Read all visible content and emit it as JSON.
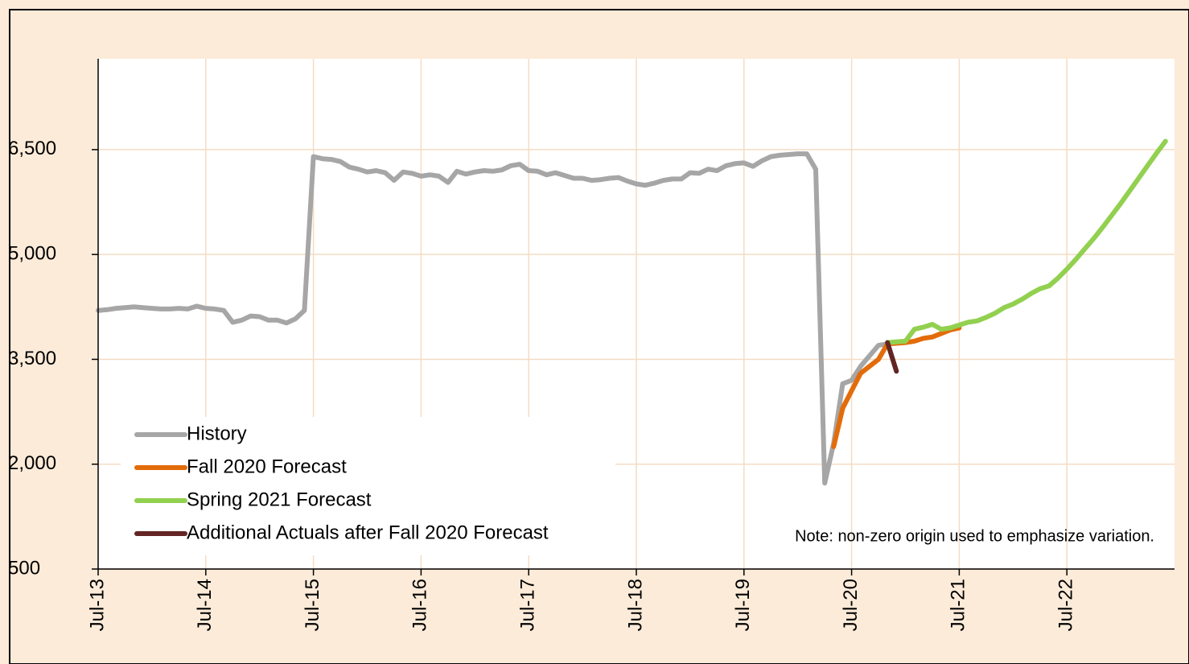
{
  "chart_data": {
    "type": "line",
    "categories": [
      "Jul-13",
      null,
      null,
      null,
      null,
      null,
      null,
      null,
      null,
      null,
      null,
      null,
      "Jul-14",
      null,
      null,
      null,
      null,
      null,
      null,
      null,
      null,
      null,
      null,
      null,
      "Jul-15",
      null,
      null,
      null,
      null,
      null,
      null,
      null,
      null,
      null,
      null,
      null,
      "Jul-16",
      null,
      null,
      null,
      null,
      null,
      null,
      null,
      null,
      null,
      null,
      null,
      "Jul-17",
      null,
      null,
      null,
      null,
      null,
      null,
      null,
      null,
      null,
      null,
      null,
      "Jul-18",
      null,
      null,
      null,
      null,
      null,
      null,
      null,
      null,
      null,
      null,
      null,
      "Jul-19",
      null,
      null,
      null,
      null,
      null,
      null,
      null,
      null,
      null,
      null,
      null,
      "Jul-20",
      null,
      null,
      null,
      null,
      null,
      null,
      null,
      null,
      null,
      null,
      null,
      "Jul-21",
      null,
      null,
      null,
      null,
      null,
      null,
      null,
      null,
      null,
      null,
      null,
      "Jul-22",
      null,
      null,
      null,
      null,
      null,
      null,
      null,
      null,
      null,
      null,
      null
    ],
    "series": [
      {
        "name": "History",
        "color": "#a6a6a6",
        "values": [
          4200,
          4210,
          4230,
          4240,
          4250,
          4240,
          4230,
          4220,
          4220,
          4230,
          4220,
          4260,
          4230,
          4220,
          4200,
          4030,
          4060,
          4120,
          4110,
          4060,
          4060,
          4020,
          4080,
          4200,
          6400,
          6370,
          6360,
          6330,
          6250,
          6220,
          6180,
          6200,
          6170,
          6060,
          6180,
          6160,
          6120,
          6140,
          6120,
          6030,
          6190,
          6150,
          6180,
          6200,
          6190,
          6210,
          6270,
          6290,
          6200,
          6190,
          6140,
          6170,
          6130,
          6090,
          6090,
          6060,
          6070,
          6090,
          6100,
          6050,
          6010,
          5990,
          6020,
          6060,
          6080,
          6080,
          6170,
          6160,
          6220,
          6200,
          6270,
          6300,
          6310,
          6260,
          6340,
          6400,
          6420,
          6430,
          6440,
          6440,
          6220,
          1730,
          2300,
          3150,
          3200,
          3400,
          3550,
          3700,
          3720,
          null,
          null,
          null,
          null,
          null,
          null,
          null,
          null,
          null,
          null,
          null,
          null,
          null,
          null,
          null,
          null,
          null,
          null,
          null,
          null,
          null,
          null,
          null,
          null,
          null,
          null,
          null,
          null,
          null,
          null,
          null
        ]
      },
      {
        "name": "Fall 2020 Forecast",
        "color": "#e36c0a",
        "values": [
          null,
          null,
          null,
          null,
          null,
          null,
          null,
          null,
          null,
          null,
          null,
          null,
          null,
          null,
          null,
          null,
          null,
          null,
          null,
          null,
          null,
          null,
          null,
          null,
          null,
          null,
          null,
          null,
          null,
          null,
          null,
          null,
          null,
          null,
          null,
          null,
          null,
          null,
          null,
          null,
          null,
          null,
          null,
          null,
          null,
          null,
          null,
          null,
          null,
          null,
          null,
          null,
          null,
          null,
          null,
          null,
          null,
          null,
          null,
          null,
          null,
          null,
          null,
          null,
          null,
          null,
          null,
          null,
          null,
          null,
          null,
          null,
          null,
          null,
          null,
          null,
          null,
          null,
          null,
          null,
          null,
          null,
          2250,
          2800,
          3050,
          3300,
          3400,
          3500,
          3720,
          3730,
          3740,
          3760,
          3800,
          3820,
          3870,
          3920,
          3950,
          null,
          null,
          null,
          null,
          null,
          null,
          null,
          null,
          null,
          null,
          null,
          null,
          null,
          null,
          null,
          null,
          null,
          null,
          null,
          null,
          null,
          null,
          null
        ]
      },
      {
        "name": "Spring 2021 Forecast",
        "color": "#92d050",
        "values": [
          null,
          null,
          null,
          null,
          null,
          null,
          null,
          null,
          null,
          null,
          null,
          null,
          null,
          null,
          null,
          null,
          null,
          null,
          null,
          null,
          null,
          null,
          null,
          null,
          null,
          null,
          null,
          null,
          null,
          null,
          null,
          null,
          null,
          null,
          null,
          null,
          null,
          null,
          null,
          null,
          null,
          null,
          null,
          null,
          null,
          null,
          null,
          null,
          null,
          null,
          null,
          null,
          null,
          null,
          null,
          null,
          null,
          null,
          null,
          null,
          null,
          null,
          null,
          null,
          null,
          null,
          null,
          null,
          null,
          null,
          null,
          null,
          null,
          null,
          null,
          null,
          null,
          null,
          null,
          null,
          null,
          null,
          null,
          null,
          null,
          null,
          null,
          null,
          3740,
          3750,
          3760,
          3930,
          3960,
          4000,
          3930,
          3950,
          3990,
          4030,
          4050,
          4100,
          4160,
          4240,
          4290,
          4360,
          4440,
          4510,
          4550,
          4660,
          4790,
          4930,
          5080,
          5230,
          5390,
          5560,
          5730,
          5910,
          6090,
          6270,
          6450,
          6620
        ]
      },
      {
        "name": "Additional Actuals after Fall 2020 Forecast",
        "color": "#632523",
        "values": [
          null,
          null,
          null,
          null,
          null,
          null,
          null,
          null,
          null,
          null,
          null,
          null,
          null,
          null,
          null,
          null,
          null,
          null,
          null,
          null,
          null,
          null,
          null,
          null,
          null,
          null,
          null,
          null,
          null,
          null,
          null,
          null,
          null,
          null,
          null,
          null,
          null,
          null,
          null,
          null,
          null,
          null,
          null,
          null,
          null,
          null,
          null,
          null,
          null,
          null,
          null,
          null,
          null,
          null,
          null,
          null,
          null,
          null,
          null,
          null,
          null,
          null,
          null,
          null,
          null,
          null,
          null,
          null,
          null,
          null,
          null,
          null,
          null,
          null,
          null,
          null,
          null,
          null,
          null,
          null,
          null,
          null,
          null,
          null,
          null,
          null,
          null,
          null,
          3740,
          3330,
          null,
          null,
          null,
          null,
          null,
          null,
          null,
          null,
          null,
          null,
          null,
          null,
          null,
          null,
          null,
          null,
          null,
          null,
          null,
          null,
          null,
          null,
          null,
          null,
          null,
          null,
          null,
          null,
          null,
          null
        ]
      }
    ],
    "ylim": [
      500,
      7800
    ],
    "yticks": [
      500,
      {
        "value": 2000,
        "label": "2,000"
      },
      {
        "value": 3500,
        "label": "3,500"
      },
      {
        "value": 5000,
        "label": "5,000"
      },
      {
        "value": 6500,
        "label": "6,500"
      }
    ],
    "grid": true,
    "legend": "lower left",
    "annotations": [
      "Note: non-zero origin used to emphasize variation."
    ]
  }
}
